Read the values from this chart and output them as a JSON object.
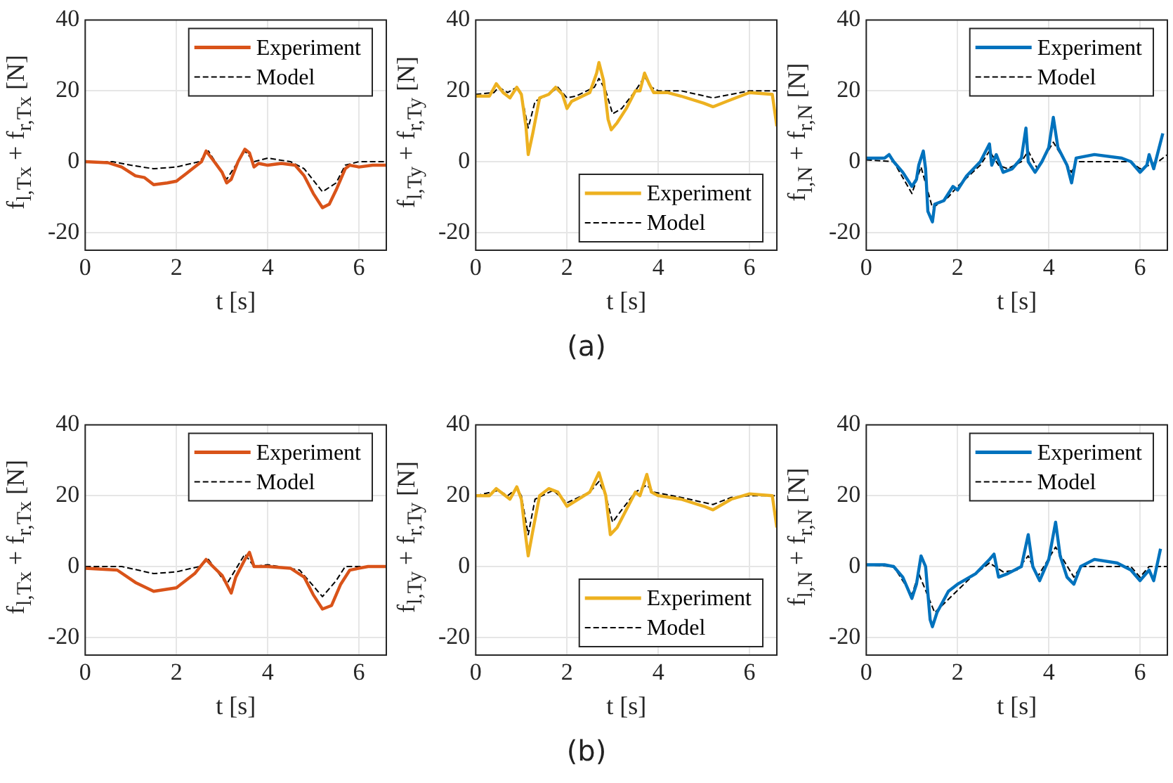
{
  "chart_data": [
    {
      "type": "line",
      "xlabel": "t [s]",
      "ylabel": "f$_{l,Tx}$ + f$_{r,Tx}$ [N]",
      "xlim": [
        0,
        6.6
      ],
      "xticks": [
        0,
        2,
        4,
        6
      ],
      "ylim": [
        -25,
        40
      ],
      "yticks": [
        -20,
        0,
        20,
        40
      ],
      "grid": true,
      "legend": "top right",
      "series": [
        {
          "name": "Experiment",
          "color": "#d95319",
          "line_style": "solid",
          "x": [
            0,
            0.5,
            0.8,
            1.1,
            1.3,
            1.5,
            1.8,
            2.0,
            2.2,
            2.4,
            2.55,
            2.65,
            2.8,
            3.0,
            3.1,
            3.2,
            3.35,
            3.5,
            3.6,
            3.7,
            3.8,
            4.0,
            4.3,
            4.6,
            4.8,
            5.0,
            5.2,
            5.35,
            5.5,
            5.7,
            5.8,
            6.0,
            6.3,
            6.6
          ],
          "values": [
            0,
            -0.3,
            -1.5,
            -4,
            -4.5,
            -6.5,
            -6,
            -5.5,
            -3.5,
            -1.5,
            0,
            3,
            0.5,
            -3,
            -6,
            -5,
            0,
            3.5,
            2.5,
            -1.5,
            -0.5,
            -1,
            -0.5,
            -1,
            -4,
            -9,
            -13,
            -12,
            -8,
            -2,
            -1,
            -1.5,
            -1,
            -1
          ]
        },
        {
          "name": "Model",
          "color": "#000000",
          "line_style": "dashed",
          "x": [
            0,
            0.6,
            1.0,
            1.5,
            2.0,
            2.5,
            2.7,
            3.1,
            3.5,
            3.7,
            4.0,
            4.5,
            4.8,
            5.2,
            5.5,
            5.7,
            6.0,
            6.6
          ],
          "values": [
            0,
            0,
            -1,
            -2,
            -1.5,
            0,
            3,
            -5,
            3,
            0,
            1,
            0,
            -2,
            -8.5,
            -6,
            -1,
            0,
            0
          ]
        }
      ]
    },
    {
      "type": "line",
      "xlabel": "t [s]",
      "ylabel": "f$_{l,Ty}$ + f$_{r,Ty}$ [N]",
      "xlim": [
        0,
        6.6
      ],
      "xticks": [
        0,
        2,
        4,
        6
      ],
      "ylim": [
        -25,
        40
      ],
      "yticks": [
        -20,
        0,
        20,
        40
      ],
      "grid": true,
      "legend": "bottom right",
      "annotations": [
        "(a)"
      ],
      "series": [
        {
          "name": "Experiment",
          "color": "#edb120",
          "line_style": "solid",
          "x": [
            0,
            0.3,
            0.45,
            0.6,
            0.75,
            0.9,
            1.0,
            1.1,
            1.15,
            1.25,
            1.4,
            1.6,
            1.75,
            1.9,
            2.0,
            2.1,
            2.5,
            2.65,
            2.7,
            2.8,
            2.9,
            2.97,
            3.1,
            3.3,
            3.5,
            3.6,
            3.7,
            3.8,
            3.9,
            4.2,
            4.5,
            5.0,
            5.2,
            5.5,
            6.0,
            6.5,
            6.6
          ],
          "values": [
            18.5,
            18.5,
            22,
            19.5,
            18,
            21,
            19,
            10,
            2,
            8,
            18,
            19,
            21,
            19,
            15,
            17,
            19.5,
            25,
            28,
            23,
            12,
            9,
            11,
            15,
            20,
            20,
            25,
            22,
            19.5,
            19.5,
            18.5,
            16.5,
            15.5,
            17,
            19.5,
            19,
            10
          ]
        },
        {
          "name": "Model",
          "color": "#000000",
          "line_style": "dashed",
          "x": [
            0,
            0.4,
            0.5,
            0.7,
            0.9,
            1.0,
            1.15,
            1.3,
            1.6,
            1.8,
            2.0,
            2.2,
            2.6,
            2.7,
            2.85,
            3.0,
            3.2,
            3.5,
            3.7,
            3.85,
            4.0,
            4.5,
            5.2,
            5.6,
            6.0,
            6.6
          ],
          "values": [
            19,
            19.5,
            21,
            19.5,
            21,
            19,
            9.5,
            17,
            19,
            21,
            18,
            18.5,
            21,
            23.5,
            20,
            13.5,
            15,
            20,
            24,
            21,
            20,
            20,
            18,
            19,
            20,
            20
          ]
        }
      ]
    },
    {
      "type": "line",
      "xlabel": "t [s]",
      "ylabel": "f$_{l,N}$ + f$_{r,N}$ [N]",
      "xlim": [
        0,
        6.6
      ],
      "xticks": [
        0,
        2,
        4,
        6
      ],
      "ylim": [
        -25,
        40
      ],
      "yticks": [
        -20,
        0,
        20,
        40
      ],
      "grid": true,
      "legend": "top right",
      "series": [
        {
          "name": "Experiment",
          "color": "#0072bd",
          "line_style": "solid",
          "x": [
            0,
            0.4,
            0.5,
            0.6,
            0.8,
            1.0,
            1.1,
            1.15,
            1.25,
            1.3,
            1.35,
            1.45,
            1.5,
            1.7,
            1.9,
            2.0,
            2.2,
            2.5,
            2.7,
            2.75,
            2.85,
            3.0,
            3.2,
            3.4,
            3.5,
            3.55,
            3.7,
            3.85,
            4.0,
            4.1,
            4.2,
            4.4,
            4.5,
            4.6,
            5.0,
            5.6,
            5.8,
            6.0,
            6.15,
            6.2,
            6.3,
            6.4,
            6.5
          ],
          "values": [
            1,
            1,
            2,
            0,
            -3,
            -7,
            -5,
            -1,
            3,
            -2,
            -14,
            -17,
            -12,
            -11,
            -7,
            -8,
            -4,
            0,
            5,
            -1,
            2,
            -3,
            -2,
            1,
            9.5,
            0,
            -3,
            0,
            4,
            12.5,
            4,
            -1,
            -6,
            1,
            2,
            1,
            0,
            -3,
            -1,
            2,
            -2,
            3,
            8
          ]
        },
        {
          "name": "Model",
          "color": "#000000",
          "line_style": "dashed",
          "x": [
            0,
            0.6,
            1.0,
            1.2,
            1.45,
            1.8,
            2.0,
            2.5,
            2.7,
            2.9,
            3.1,
            3.4,
            3.55,
            3.75,
            4.1,
            4.5,
            4.6,
            5.8,
            6.0,
            6.2,
            6.4,
            6.6
          ],
          "values": [
            0.5,
            0,
            -9,
            -1.5,
            -13,
            -10,
            -7,
            -1,
            3,
            -1,
            -2,
            0,
            3,
            -2,
            5.5,
            -3,
            0,
            0,
            -2,
            -1,
            0,
            2
          ]
        }
      ]
    },
    {
      "type": "line",
      "xlabel": "t [s]",
      "ylabel": "f$_{l,Tx}$ + f$_{r,Tx}$ [N]",
      "xlim": [
        0,
        6.6
      ],
      "xticks": [
        0,
        2,
        4,
        6
      ],
      "ylim": [
        -25,
        40
      ],
      "yticks": [
        -20,
        0,
        20,
        40
      ],
      "grid": true,
      "legend": "top right",
      "series": [
        {
          "name": "Experiment",
          "color": "#d95319",
          "line_style": "solid",
          "x": [
            0,
            0.7,
            1.1,
            1.5,
            2.0,
            2.4,
            2.65,
            2.8,
            3.0,
            3.2,
            3.3,
            3.5,
            3.6,
            3.7,
            4.0,
            4.5,
            4.8,
            5.0,
            5.2,
            5.4,
            5.6,
            5.8,
            6.2,
            6.6
          ],
          "values": [
            -0.5,
            -1,
            -4.5,
            -7,
            -6,
            -2,
            2,
            0,
            -2.5,
            -7.5,
            -3,
            2,
            4,
            0,
            0,
            -0.5,
            -3,
            -8,
            -12,
            -11,
            -5,
            -1,
            0,
            0
          ]
        },
        {
          "name": "Model",
          "color": "#000000",
          "line_style": "dashed",
          "x": [
            0,
            0.8,
            1.5,
            2.0,
            2.5,
            2.7,
            3.1,
            3.5,
            3.7,
            4.0,
            4.7,
            5.2,
            5.5,
            5.7,
            6.6
          ],
          "values": [
            0,
            0,
            -2,
            -1.5,
            0,
            2,
            -5,
            3.5,
            0,
            0.5,
            -1,
            -8.5,
            -4,
            0,
            0
          ]
        }
      ]
    },
    {
      "type": "line",
      "xlabel": "t [s]",
      "ylabel": "f$_{l,Ty}$ + f$_{r,Ty}$ [N]",
      "xlim": [
        0,
        6.6
      ],
      "xticks": [
        0,
        2,
        4,
        6
      ],
      "ylim": [
        -25,
        40
      ],
      "yticks": [
        -20,
        0,
        20,
        40
      ],
      "grid": true,
      "legend": "bottom right",
      "annotations": [
        "(b)"
      ],
      "series": [
        {
          "name": "Experiment",
          "color": "#edb120",
          "line_style": "solid",
          "x": [
            0,
            0.3,
            0.45,
            0.6,
            0.75,
            0.9,
            1.0,
            1.1,
            1.15,
            1.25,
            1.4,
            1.6,
            1.8,
            2.0,
            2.5,
            2.7,
            2.85,
            2.95,
            3.1,
            3.3,
            3.5,
            3.6,
            3.75,
            3.85,
            4.0,
            4.5,
            5.0,
            5.2,
            5.6,
            6.0,
            6.5,
            6.6
          ],
          "values": [
            20,
            20,
            22,
            20.5,
            19,
            22.5,
            19,
            8,
            3,
            10,
            20,
            22,
            21,
            17,
            21,
            26.5,
            20,
            9,
            11,
            16,
            21,
            20,
            26,
            21,
            20,
            19,
            17,
            16,
            19,
            20.5,
            20,
            11
          ]
        },
        {
          "name": "Model",
          "color": "#000000",
          "line_style": "dashed",
          "x": [
            0,
            0.5,
            0.7,
            0.9,
            1.0,
            1.15,
            1.3,
            1.7,
            2.0,
            2.5,
            2.7,
            2.85,
            3.0,
            3.2,
            3.5,
            3.75,
            3.9,
            4.5,
            5.2,
            5.6,
            6.0,
            6.6
          ],
          "values": [
            20,
            21.5,
            20,
            22,
            20,
            9,
            19,
            21.5,
            18,
            21,
            24,
            20,
            12.5,
            16,
            21,
            23,
            21,
            19.5,
            17.5,
            19.5,
            20,
            20
          ]
        }
      ]
    },
    {
      "type": "line",
      "xlabel": "t [s]",
      "ylabel": "f$_{l,N}$ + f$_{r,N}$ [N]",
      "xlim": [
        0,
        6.6
      ],
      "xticks": [
        0,
        2,
        4,
        6
      ],
      "ylim": [
        -25,
        40
      ],
      "yticks": [
        -20,
        0,
        20,
        40
      ],
      "grid": true,
      "legend": "top right",
      "series": [
        {
          "name": "Experiment",
          "color": "#0072bd",
          "line_style": "solid",
          "x": [
            0,
            0.4,
            0.6,
            0.8,
            1.0,
            1.1,
            1.2,
            1.3,
            1.4,
            1.45,
            1.55,
            1.8,
            2.0,
            2.4,
            2.7,
            2.8,
            2.9,
            3.1,
            3.4,
            3.55,
            3.65,
            3.8,
            4.0,
            4.15,
            4.25,
            4.4,
            4.55,
            4.7,
            5.0,
            5.5,
            5.8,
            6.0,
            6.2,
            6.3,
            6.45
          ],
          "values": [
            0.5,
            0.5,
            0,
            -3,
            -9,
            -5,
            3,
            0,
            -15,
            -17,
            -13,
            -7,
            -5,
            -2,
            2,
            3.5,
            -3,
            -2,
            0,
            9,
            0,
            -4,
            2,
            12.5,
            3,
            -3,
            -5,
            0,
            2,
            1,
            -1,
            -4,
            -1,
            -4,
            5
          ]
        },
        {
          "name": "Model",
          "color": "#000000",
          "line_style": "dashed",
          "x": [
            0,
            0.6,
            1.0,
            1.15,
            1.5,
            1.9,
            2.3,
            2.7,
            3.0,
            3.3,
            3.55,
            3.75,
            4.15,
            4.55,
            4.7,
            5.8,
            6.0,
            6.2,
            6.6
          ],
          "values": [
            0.5,
            0,
            -8,
            -2,
            -13,
            -8,
            -3,
            1,
            -1.5,
            -1,
            3,
            -3,
            5.5,
            -3,
            0,
            0,
            -3,
            0,
            0
          ]
        }
      ]
    }
  ]
}
